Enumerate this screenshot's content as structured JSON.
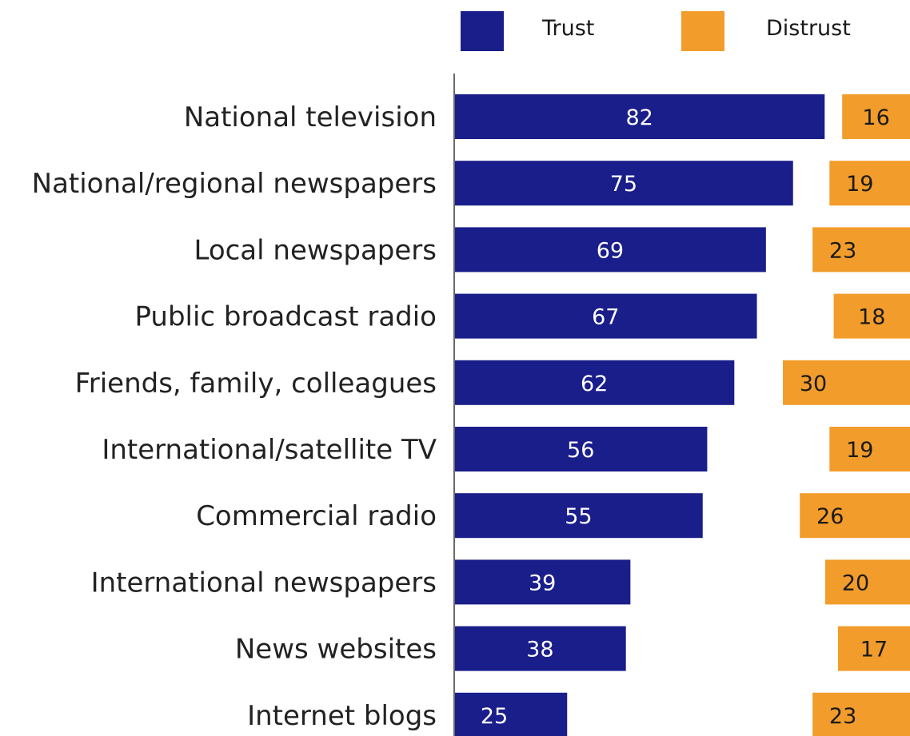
{
  "chart_data": {
    "type": "bar",
    "orientation": "horizontal",
    "categories": [
      "National television",
      "National/regional newspapers",
      "Local newspapers",
      "Public broadcast radio",
      "Friends, family, colleagues",
      "International/satellite TV",
      "Commercial radio",
      "International newspapers",
      "News websites",
      "Internet blogs"
    ],
    "series": [
      {
        "name": "Trust",
        "color": "#1a1e8a",
        "values": [
          82,
          75,
          69,
          67,
          62,
          56,
          55,
          39,
          38,
          25
        ]
      },
      {
        "name": "Distrust",
        "color": "#f29c2c",
        "values": [
          16,
          19,
          23,
          18,
          30,
          19,
          26,
          20,
          17,
          23
        ]
      }
    ],
    "title": "",
    "xlabel": "",
    "ylabel": "",
    "grid": false,
    "legend": "top-right",
    "data_labels": true
  }
}
